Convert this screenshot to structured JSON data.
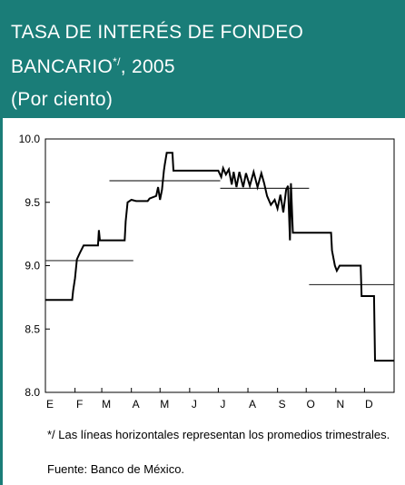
{
  "chart_data": {
    "type": "line",
    "title_line1": "TASA DE INTERÉS DE FONDEO",
    "title_line2": "BANCARIO",
    "title_sup": "*/",
    "title_line2_end": ", 2005",
    "subtitle": "(Por ciento)",
    "categories": [
      "E",
      "F",
      "M",
      "A",
      "M",
      "J",
      "J",
      "A",
      "S",
      "O",
      "N",
      "D"
    ],
    "xlim": [
      0,
      365
    ],
    "xticks": [
      0,
      31,
      59,
      90,
      120,
      151,
      181,
      212,
      243,
      273,
      304,
      334,
      365
    ],
    "ylim": [
      8.0,
      10.0
    ],
    "yticks": [
      {
        "value": 8.0,
        "label": "8.0"
      },
      {
        "value": 8.5,
        "label": "8.5"
      },
      {
        "value": 9.0,
        "label": "9.0"
      },
      {
        "value": 9.5,
        "label": "9.5"
      },
      {
        "value": 10.0,
        "label": "10.0"
      }
    ],
    "series": [
      {
        "color": "#000000",
        "x": [
          0,
          28,
          29,
          31,
          33,
          36,
          40,
          55,
          56,
          57,
          83,
          84,
          86,
          90,
          95,
          107,
          109,
          116,
          118,
          120,
          122,
          124,
          125,
          127,
          133,
          134,
          181,
          184,
          186,
          189,
          192,
          195,
          197,
          200,
          203,
          207,
          210,
          214,
          218,
          222,
          226,
          229,
          232,
          236,
          240,
          243,
          246,
          249,
          252,
          254,
          256,
          257,
          259,
          299,
          300,
          303,
          305,
          308,
          330,
          331,
          344,
          345,
          365
        ],
        "values": [
          8.73,
          8.73,
          8.8,
          8.9,
          9.05,
          9.1,
          9.16,
          9.16,
          9.28,
          9.2,
          9.2,
          9.35,
          9.5,
          9.52,
          9.51,
          9.51,
          9.53,
          9.55,
          9.62,
          9.52,
          9.6,
          9.75,
          9.8,
          9.89,
          9.89,
          9.75,
          9.75,
          9.7,
          9.77,
          9.72,
          9.76,
          9.64,
          9.74,
          9.62,
          9.74,
          9.62,
          9.73,
          9.63,
          9.74,
          9.62,
          9.73,
          9.65,
          9.55,
          9.48,
          9.52,
          9.45,
          9.56,
          9.42,
          9.6,
          9.63,
          9.2,
          9.65,
          9.26,
          9.26,
          9.12,
          9.0,
          8.96,
          9.0,
          9.0,
          8.76,
          8.76,
          8.25,
          8.25
        ]
      }
    ],
    "averages": [
      {
        "value": 9.04,
        "x": [
          0,
          92
        ]
      },
      {
        "value": 9.67,
        "x": [
          67,
          183
        ]
      },
      {
        "value": 9.61,
        "x": [
          183,
          276
        ]
      },
      {
        "value": 8.85,
        "x": [
          276,
          365
        ]
      }
    ],
    "note": "*/ Las líneas horizontales representan los promedios trimestrales.",
    "source": "Fuente: Banco de México."
  }
}
